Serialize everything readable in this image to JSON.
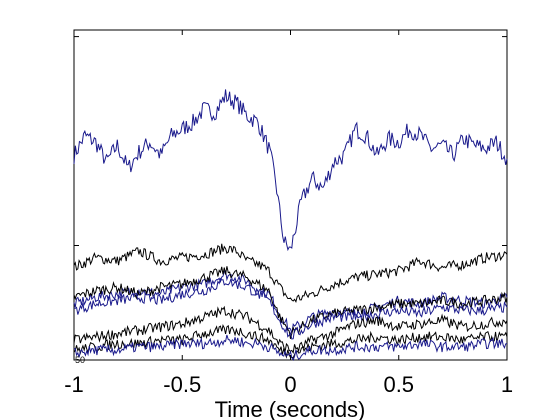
{
  "chart_data": {
    "type": "line",
    "title": "",
    "xlabel": "Time (seconds)",
    "ylabel": "",
    "xlim": [
      -1,
      1
    ],
    "ylim": [
      0,
      100
    ],
    "xticks": [
      -1,
      -0.5,
      0,
      0.5,
      1
    ],
    "xtick_labels": [
      "-1",
      "-0.5",
      "0",
      "0.5",
      "1"
    ],
    "yticks": [
      0,
      34.7,
      98
    ],
    "ytick_labels": [
      "",
      "",
      ""
    ],
    "corner_label": "50",
    "grid": false,
    "legend": "none",
    "series": [
      {
        "color": "#1a1a8c",
        "x": [
          -1.0,
          -0.95,
          -0.9,
          -0.85,
          -0.8,
          -0.75,
          -0.7,
          -0.65,
          -0.6,
          -0.55,
          -0.5,
          -0.45,
          -0.4,
          -0.35,
          -0.3,
          -0.25,
          -0.2,
          -0.15,
          -0.1,
          -0.07,
          -0.05,
          -0.03,
          0.0,
          0.03,
          0.05,
          0.1,
          0.15,
          0.2,
          0.25,
          0.3,
          0.35,
          0.4,
          0.45,
          0.5,
          0.55,
          0.6,
          0.65,
          0.7,
          0.75,
          0.8,
          0.85,
          0.9,
          0.95,
          1.0
        ],
        "values": [
          62.0,
          68.0,
          66.0,
          60.0,
          65.0,
          58.0,
          63.0,
          66.0,
          62.0,
          68.0,
          70.0,
          72.0,
          76.0,
          75.0,
          80.0,
          78.0,
          74.0,
          72.0,
          64.0,
          55.0,
          45.0,
          36.0,
          33.0,
          42.0,
          48.0,
          55.0,
          52.0,
          60.0,
          62.0,
          70.0,
          68.0,
          62.0,
          67.0,
          66.0,
          70.0,
          68.0,
          64.0,
          65.0,
          62.0,
          67.0,
          65.0,
          64.0,
          66.0,
          61.0
        ]
      },
      {
        "color": "#000000",
        "x": [
          -1.0,
          -0.9,
          -0.8,
          -0.7,
          -0.6,
          -0.5,
          -0.4,
          -0.3,
          -0.25,
          -0.2,
          -0.15,
          -0.1,
          -0.05,
          0.0,
          0.05,
          0.1,
          0.2,
          0.3,
          0.4,
          0.5,
          0.6,
          0.7,
          0.8,
          0.9,
          1.0
        ],
        "values": [
          28.0,
          31.0,
          30.0,
          33.0,
          30.0,
          31.0,
          32.0,
          34.0,
          33.0,
          30.0,
          29.0,
          27.0,
          22.0,
          18.0,
          19.0,
          20.0,
          23.0,
          25.0,
          26.0,
          27.0,
          30.0,
          28.0,
          29.0,
          31.0,
          32.0
        ]
      },
      {
        "color": "#1a1a8c",
        "x": [
          -1.0,
          -0.9,
          -0.8,
          -0.7,
          -0.6,
          -0.5,
          -0.4,
          -0.3,
          -0.25,
          -0.2,
          -0.15,
          -0.1,
          -0.05,
          0.0,
          0.05,
          0.1,
          0.2,
          0.3,
          0.4,
          0.5,
          0.6,
          0.7,
          0.8,
          0.9,
          1.0
        ],
        "values": [
          17.0,
          19.0,
          20.0,
          21.0,
          20.0,
          22.0,
          23.0,
          26.0,
          25.0,
          24.0,
          21.0,
          20.0,
          14.0,
          9.0,
          11.0,
          13.0,
          15.0,
          14.0,
          16.0,
          18.0,
          17.0,
          19.0,
          18.0,
          17.0,
          19.0
        ]
      },
      {
        "color": "#000000",
        "x": [
          -1.0,
          -0.9,
          -0.8,
          -0.7,
          -0.6,
          -0.5,
          -0.4,
          -0.3,
          -0.25,
          -0.2,
          -0.15,
          -0.1,
          -0.05,
          0.0,
          0.05,
          0.1,
          0.2,
          0.3,
          0.4,
          0.5,
          0.6,
          0.7,
          0.8,
          0.9,
          1.0
        ],
        "values": [
          19.0,
          21.0,
          22.0,
          20.0,
          22.0,
          23.0,
          25.0,
          27.0,
          26.0,
          25.0,
          23.0,
          21.0,
          13.0,
          8.0,
          10.0,
          12.0,
          14.0,
          15.0,
          16.0,
          17.0,
          17.0,
          18.0,
          17.0,
          18.0,
          19.0
        ]
      },
      {
        "color": "#1a1a8c",
        "x": [
          -1.0,
          -0.9,
          -0.8,
          -0.7,
          -0.6,
          -0.5,
          -0.4,
          -0.3,
          -0.25,
          -0.2,
          -0.15,
          -0.1,
          -0.05,
          0.0,
          0.05,
          0.1,
          0.2,
          0.3,
          0.4,
          0.5,
          0.6,
          0.7,
          0.8,
          0.9,
          1.0
        ],
        "values": [
          15.0,
          17.0,
          18.0,
          19.0,
          18.0,
          20.0,
          21.0,
          24.0,
          23.0,
          22.0,
          20.0,
          18.0,
          12.0,
          7.0,
          9.0,
          11.0,
          13.0,
          13.0,
          14.0,
          15.0,
          14.0,
          16.0,
          15.0,
          15.0,
          16.0
        ]
      },
      {
        "color": "#000000",
        "x": [
          -1.0,
          -0.9,
          -0.8,
          -0.7,
          -0.6,
          -0.5,
          -0.4,
          -0.3,
          -0.25,
          -0.2,
          -0.15,
          -0.1,
          -0.05,
          0.0,
          0.05,
          0.1,
          0.2,
          0.3,
          0.4,
          0.5,
          0.6,
          0.7,
          0.8,
          0.9,
          1.0
        ],
        "values": [
          6.0,
          7.0,
          8.0,
          9.0,
          10.0,
          11.0,
          13.0,
          15.0,
          14.0,
          13.0,
          11.0,
          9.0,
          5.0,
          3.0,
          4.0,
          6.0,
          8.0,
          11.0,
          12.0,
          10.0,
          11.0,
          12.0,
          10.0,
          11.0,
          12.0
        ]
      },
      {
        "color": "#000000",
        "x": [
          -1.0,
          -0.9,
          -0.8,
          -0.7,
          -0.6,
          -0.5,
          -0.4,
          -0.3,
          -0.25,
          -0.2,
          -0.15,
          -0.1,
          -0.05,
          0.0,
          0.05,
          0.1,
          0.2,
          0.3,
          0.4,
          0.5,
          0.6,
          0.7,
          0.8,
          0.9,
          1.0
        ],
        "values": [
          3.0,
          4.0,
          5.0,
          5.0,
          6.0,
          6.0,
          8.0,
          9.0,
          9.0,
          8.0,
          7.0,
          6.0,
          3.0,
          2.0,
          3.0,
          4.0,
          5.0,
          6.0,
          7.0,
          6.0,
          7.0,
          7.0,
          6.0,
          7.0,
          7.0
        ]
      },
      {
        "color": "#1a1a8c",
        "x": [
          -1.0,
          -0.9,
          -0.8,
          -0.7,
          -0.6,
          -0.5,
          -0.4,
          -0.3,
          -0.25,
          -0.2,
          -0.15,
          -0.1,
          -0.05,
          0.0,
          0.05,
          0.1,
          0.2,
          0.3,
          0.4,
          0.5,
          0.6,
          0.7,
          0.8,
          0.9,
          1.0
        ],
        "values": [
          2.0,
          3.0,
          3.0,
          4.0,
          4.0,
          5.0,
          5.0,
          6.0,
          6.0,
          5.0,
          5.0,
          4.0,
          2.0,
          1.0,
          2.0,
          3.0,
          3.0,
          4.0,
          4.0,
          4.0,
          5.0,
          4.0,
          4.0,
          5.0,
          5.0
        ]
      }
    ]
  }
}
